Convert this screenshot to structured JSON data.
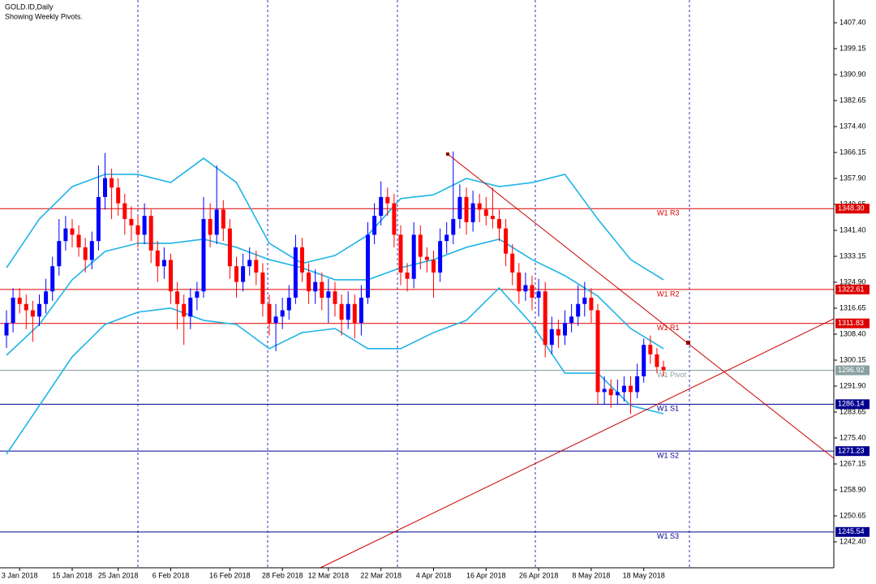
{
  "chart_data": {
    "type": "candlestick",
    "title": "GOLD.ID,Daily",
    "subtitle": "Showing Weekly Pivots.",
    "up_color": "#0000ff",
    "down_color": "#ff0000",
    "band_color": "#1eb4e6",
    "ylim": [
      1234.15,
      1414.62
    ],
    "yticks": [
      {
        "value": 1407.4,
        "label": "1407.40"
      },
      {
        "value": 1399.15,
        "label": "1399.15"
      },
      {
        "value": 1390.9,
        "label": "1390.90"
      },
      {
        "value": 1382.65,
        "label": "1382.65"
      },
      {
        "value": 1374.4,
        "label": "1374.40"
      },
      {
        "value": 1366.15,
        "label": "1366.15"
      },
      {
        "value": 1357.9,
        "label": "1357.90"
      },
      {
        "value": 1349.65,
        "label": "1349.65"
      },
      {
        "value": 1341.4,
        "label": "1341.40"
      },
      {
        "value": 1333.15,
        "label": "1333.15"
      },
      {
        "value": 1324.9,
        "label": "1324.90"
      },
      {
        "value": 1316.65,
        "label": "1316.65"
      },
      {
        "value": 1308.4,
        "label": "1308.40"
      },
      {
        "value": 1300.15,
        "label": "1300.15"
      },
      {
        "value": 1291.9,
        "label": "1291.90"
      },
      {
        "value": 1283.65,
        "label": "1283.65"
      },
      {
        "value": 1275.4,
        "label": "1275.40"
      },
      {
        "value": 1267.15,
        "label": "1267.15"
      },
      {
        "value": 1258.9,
        "label": "1258.90"
      },
      {
        "value": 1250.65,
        "label": "1250.65"
      },
      {
        "value": 1242.4,
        "label": "1242.40"
      }
    ],
    "categories": [
      null,
      null,
      "3 Jan 2018",
      null,
      null,
      null,
      null,
      null,
      null,
      null,
      "15 Jan 2018",
      null,
      null,
      null,
      null,
      null,
      null,
      "25 Jan 2018",
      null,
      null,
      null,
      null,
      null,
      null,
      null,
      "6 Feb 2018",
      null,
      null,
      null,
      null,
      null,
      null,
      null,
      null,
      "16 Feb 2018",
      null,
      null,
      null,
      null,
      null,
      null,
      null,
      "28 Feb 2018",
      null,
      null,
      null,
      null,
      null,
      null,
      "12 Mar 2018",
      null,
      null,
      null,
      null,
      null,
      null,
      null,
      "22 Mar 2018",
      null,
      null,
      null,
      null,
      null,
      null,
      null,
      "4 Apr 2018",
      null,
      null,
      null,
      null,
      null,
      null,
      null,
      "16 Apr 2018",
      null,
      null,
      null,
      null,
      null,
      null,
      null,
      "26 Apr 2018",
      null,
      null,
      null,
      null,
      null,
      null,
      null,
      "8 May 2018",
      null,
      null,
      null,
      null,
      null,
      null,
      null,
      "18 May 2018",
      null,
      null,
      null
    ],
    "candles": [
      [
        1308,
        1316,
        1304,
        1312
      ],
      [
        1312,
        1323,
        1309,
        1320
      ],
      [
        1320,
        1323,
        1315,
        1318
      ],
      [
        1318,
        1321,
        1310,
        1316
      ],
      [
        1316,
        1319,
        1306,
        1314
      ],
      [
        1314,
        1321,
        1311,
        1318
      ],
      [
        1318,
        1326,
        1315,
        1322
      ],
      [
        1322,
        1333,
        1319,
        1330
      ],
      [
        1330,
        1345,
        1327,
        1338
      ],
      [
        1338,
        1346,
        1335,
        1342
      ],
      [
        1342,
        1345,
        1336,
        1340
      ],
      [
        1340,
        1343,
        1333,
        1336
      ],
      [
        1336,
        1339,
        1328,
        1332
      ],
      [
        1332,
        1341,
        1329,
        1338
      ],
      [
        1338,
        1362,
        1335,
        1352
      ],
      [
        1352,
        1366,
        1348,
        1358
      ],
      [
        1358,
        1361,
        1345,
        1355
      ],
      [
        1355,
        1358,
        1346,
        1350
      ],
      [
        1350,
        1353,
        1340,
        1345
      ],
      [
        1345,
        1349,
        1338,
        1343
      ],
      [
        1343,
        1346,
        1336,
        1340
      ],
      [
        1340,
        1350,
        1337,
        1346
      ],
      [
        1346,
        1348,
        1331,
        1335
      ],
      [
        1335,
        1338,
        1325,
        1330
      ],
      [
        1330,
        1336,
        1326,
        1332
      ],
      [
        1332,
        1334,
        1318,
        1322
      ],
      [
        1322,
        1325,
        1310,
        1318
      ],
      [
        1318,
        1321,
        1305,
        1314
      ],
      [
        1314,
        1323,
        1310,
        1320
      ],
      [
        1320,
        1325,
        1316,
        1322
      ],
      [
        1322,
        1352,
        1320,
        1345
      ],
      [
        1345,
        1350,
        1336,
        1340
      ],
      [
        1340,
        1362,
        1337,
        1348
      ],
      [
        1348,
        1351,
        1338,
        1342
      ],
      [
        1342,
        1345,
        1326,
        1330
      ],
      [
        1330,
        1333,
        1320,
        1325
      ],
      [
        1325,
        1334,
        1322,
        1330
      ],
      [
        1330,
        1336,
        1327,
        1332
      ],
      [
        1332,
        1335,
        1324,
        1328
      ],
      [
        1328,
        1331,
        1314,
        1318
      ],
      [
        1318,
        1321,
        1308,
        1312
      ],
      [
        1312,
        1318,
        1303,
        1314
      ],
      [
        1314,
        1320,
        1310,
        1316
      ],
      [
        1316,
        1324,
        1313,
        1320
      ],
      [
        1320,
        1340,
        1318,
        1336
      ],
      [
        1336,
        1339,
        1325,
        1328
      ],
      [
        1328,
        1331,
        1318,
        1322
      ],
      [
        1322,
        1329,
        1318,
        1325
      ],
      [
        1325,
        1328,
        1316,
        1320
      ],
      [
        1320,
        1326,
        1312,
        1322
      ],
      [
        1322,
        1325,
        1314,
        1318
      ],
      [
        1318,
        1321,
        1308,
        1313
      ],
      [
        1313,
        1322,
        1310,
        1318
      ],
      [
        1318,
        1321,
        1307,
        1312
      ],
      [
        1312,
        1324,
        1308,
        1320
      ],
      [
        1320,
        1344,
        1318,
        1340
      ],
      [
        1340,
        1350,
        1337,
        1346
      ],
      [
        1346,
        1357,
        1343,
        1352
      ],
      [
        1352,
        1355,
        1346,
        1350
      ],
      [
        1350,
        1353,
        1336,
        1340
      ],
      [
        1340,
        1343,
        1324,
        1328
      ],
      [
        1328,
        1331,
        1322,
        1326
      ],
      [
        1326,
        1344,
        1323,
        1340
      ],
      [
        1340,
        1343,
        1329,
        1333
      ],
      [
        1333,
        1336,
        1328,
        1332
      ],
      [
        1332,
        1335,
        1320,
        1328
      ],
      [
        1328,
        1342,
        1325,
        1338
      ],
      [
        1338,
        1344,
        1334,
        1340
      ],
      [
        1340,
        1366.5,
        1337,
        1345
      ],
      [
        1345,
        1356,
        1342,
        1352
      ],
      [
        1352,
        1355,
        1340,
        1344
      ],
      [
        1344,
        1354,
        1341,
        1350
      ],
      [
        1350,
        1353,
        1344,
        1348
      ],
      [
        1348,
        1352,
        1343,
        1346
      ],
      [
        1346,
        1355,
        1342,
        1345
      ],
      [
        1345,
        1348,
        1338,
        1342
      ],
      [
        1342,
        1345,
        1330,
        1334
      ],
      [
        1334,
        1337,
        1324,
        1328
      ],
      [
        1328,
        1331,
        1318,
        1322
      ],
      [
        1322,
        1328,
        1319,
        1324
      ],
      [
        1324,
        1327,
        1316,
        1320
      ],
      [
        1320,
        1326,
        1314,
        1322
      ],
      [
        1322,
        1325,
        1301,
        1305
      ],
      [
        1305,
        1314,
        1302,
        1310
      ],
      [
        1310,
        1313,
        1304,
        1308
      ],
      [
        1308,
        1316,
        1305,
        1312
      ],
      [
        1312,
        1318,
        1309,
        1314
      ],
      [
        1314,
        1324,
        1311,
        1318
      ],
      [
        1318,
        1325,
        1314,
        1320
      ],
      [
        1320,
        1323,
        1312,
        1316
      ],
      [
        1316,
        1318,
        1286,
        1290
      ],
      [
        1290,
        1295,
        1286,
        1291
      ],
      [
        1291,
        1294,
        1285,
        1289
      ],
      [
        1289,
        1294,
        1286,
        1290
      ],
      [
        1290,
        1295,
        1287,
        1292
      ],
      [
        1292,
        1295,
        1283,
        1290
      ],
      [
        1290,
        1299,
        1288,
        1295
      ],
      [
        1295,
        1307,
        1293,
        1305
      ],
      [
        1305,
        1308,
        1299,
        1302
      ],
      [
        1302,
        1304,
        1296,
        1298
      ],
      [
        1298,
        1300,
        1295,
        1297
      ]
    ],
    "bands": {
      "x": [
        0,
        5,
        10,
        15,
        20,
        25,
        30,
        35,
        40,
        45,
        50,
        55,
        60,
        65,
        70,
        75,
        80,
        85,
        90,
        95,
        100
      ],
      "series": [
        {
          "values": [
            1329.5,
            1345.0,
            1355.3,
            1359.2,
            1359.2,
            1356.6,
            1364.3,
            1356.6,
            1337.3,
            1330.9,
            1333.4,
            1339.9,
            1351.5,
            1352.7,
            1357.9,
            1355.3,
            1356.6,
            1359.2,
            1345.0,
            1332.1,
            1325.7
          ]
        },
        {
          "values": [
            1301.7,
            1311.5,
            1325.7,
            1334.7,
            1337.3,
            1337.3,
            1338.6,
            1336.0,
            1332.1,
            1329.5,
            1325.7,
            1325.7,
            1329.5,
            1332.1,
            1336.0,
            1338.6,
            1332.1,
            1327.0,
            1320.5,
            1310.2,
            1303.8
          ]
        },
        {
          "values": [
            1270.3,
            1285.7,
            1301.2,
            1311.5,
            1315.4,
            1316.7,
            1312.8,
            1311.5,
            1303.8,
            1308.9,
            1310.2,
            1303.8,
            1303.8,
            1308.9,
            1312.8,
            1323.1,
            1311.5,
            1296.0,
            1296.0,
            1285.7,
            1283.1
          ]
        }
      ]
    },
    "pivots": {
      "names": [
        "W1 R3",
        "W1 R2",
        "W1 R1",
        "W1 Pivot",
        "W1 S1",
        "W1 S2",
        "W1 S3"
      ],
      "values": [
        1348.3,
        1322.61,
        1311.83,
        1296.92,
        1286.14,
        1271.23,
        1245.54
      ],
      "value_labels": [
        "1348.30",
        "1322.61",
        "1311.83",
        "1296.92",
        "1286.14",
        "1271.23",
        "1245.54"
      ],
      "colors": [
        "#dd0000",
        "#dd0000",
        "#dd0000",
        "#8aa0a0",
        "#000090",
        "#000090",
        "#000090"
      ]
    }
  }
}
